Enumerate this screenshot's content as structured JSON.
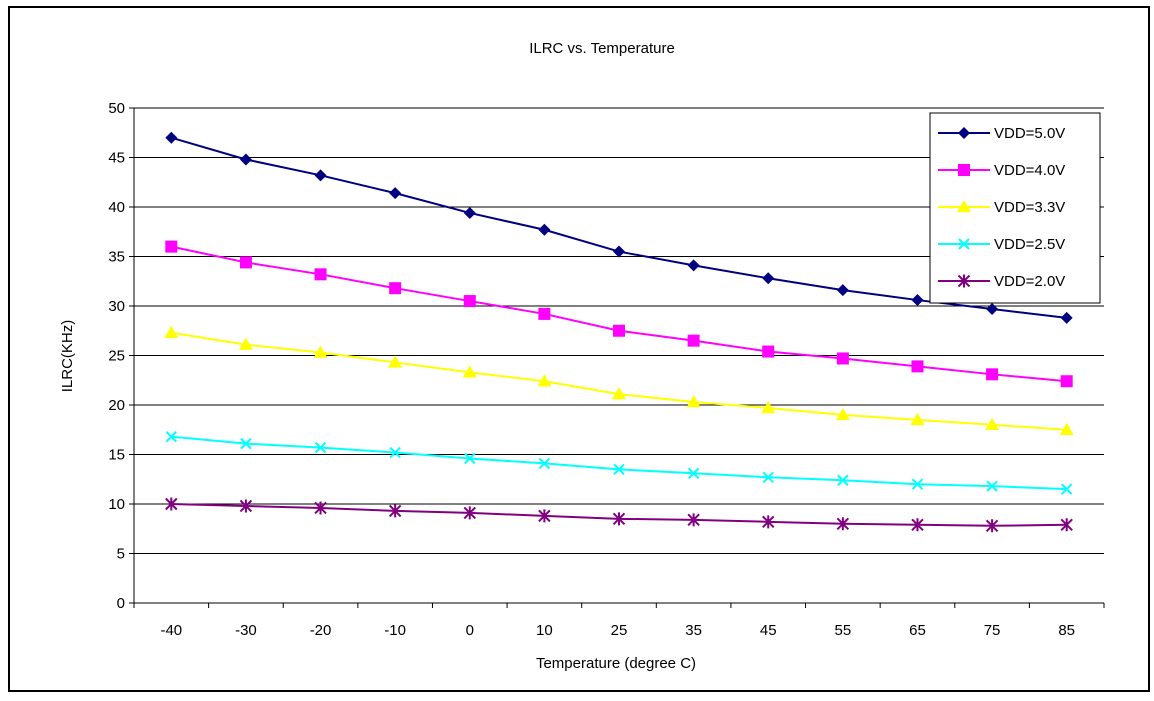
{
  "chart_data": {
    "type": "line",
    "title": "ILRC vs. Temperature",
    "xlabel": "Temperature (degree C)",
    "ylabel": "ILRC(KHz)",
    "categories": [
      "-40",
      "-30",
      "-20",
      "-10",
      "0",
      "10",
      "25",
      "35",
      "45",
      "55",
      "65",
      "75",
      "85"
    ],
    "ylim": [
      0,
      50
    ],
    "yticks": [
      "0",
      "5",
      "10",
      "15",
      "20",
      "25",
      "30",
      "35",
      "40",
      "45",
      "50"
    ],
    "grid": "horizontal",
    "legend_position": "top-right",
    "series": [
      {
        "name": "VDD=5.0V",
        "color": "#000080",
        "marker": "diamond",
        "values": [
          47.0,
          44.8,
          43.2,
          41.4,
          39.4,
          37.7,
          35.5,
          34.1,
          32.8,
          31.6,
          30.6,
          29.7,
          28.8
        ]
      },
      {
        "name": "VDD=4.0V",
        "color": "#ff00ff",
        "marker": "square",
        "values": [
          36.0,
          34.4,
          33.2,
          31.8,
          30.5,
          29.2,
          27.5,
          26.5,
          25.4,
          24.7,
          23.9,
          23.1,
          22.4
        ]
      },
      {
        "name": "VDD=3.3V",
        "color": "#ffff00",
        "marker": "triangle",
        "values": [
          27.3,
          26.1,
          25.3,
          24.3,
          23.3,
          22.4,
          21.1,
          20.3,
          19.7,
          19.0,
          18.5,
          18.0,
          17.5
        ]
      },
      {
        "name": "VDD=2.5V",
        "color": "#00ffff",
        "marker": "x",
        "values": [
          16.8,
          16.1,
          15.7,
          15.2,
          14.6,
          14.1,
          13.5,
          13.1,
          12.7,
          12.4,
          12.0,
          11.8,
          11.5
        ]
      },
      {
        "name": "VDD=2.0V",
        "color": "#800080",
        "marker": "star",
        "values": [
          10.0,
          9.8,
          9.6,
          9.3,
          9.1,
          8.8,
          8.5,
          8.4,
          8.2,
          8.0,
          7.9,
          7.8,
          7.9
        ]
      }
    ]
  }
}
